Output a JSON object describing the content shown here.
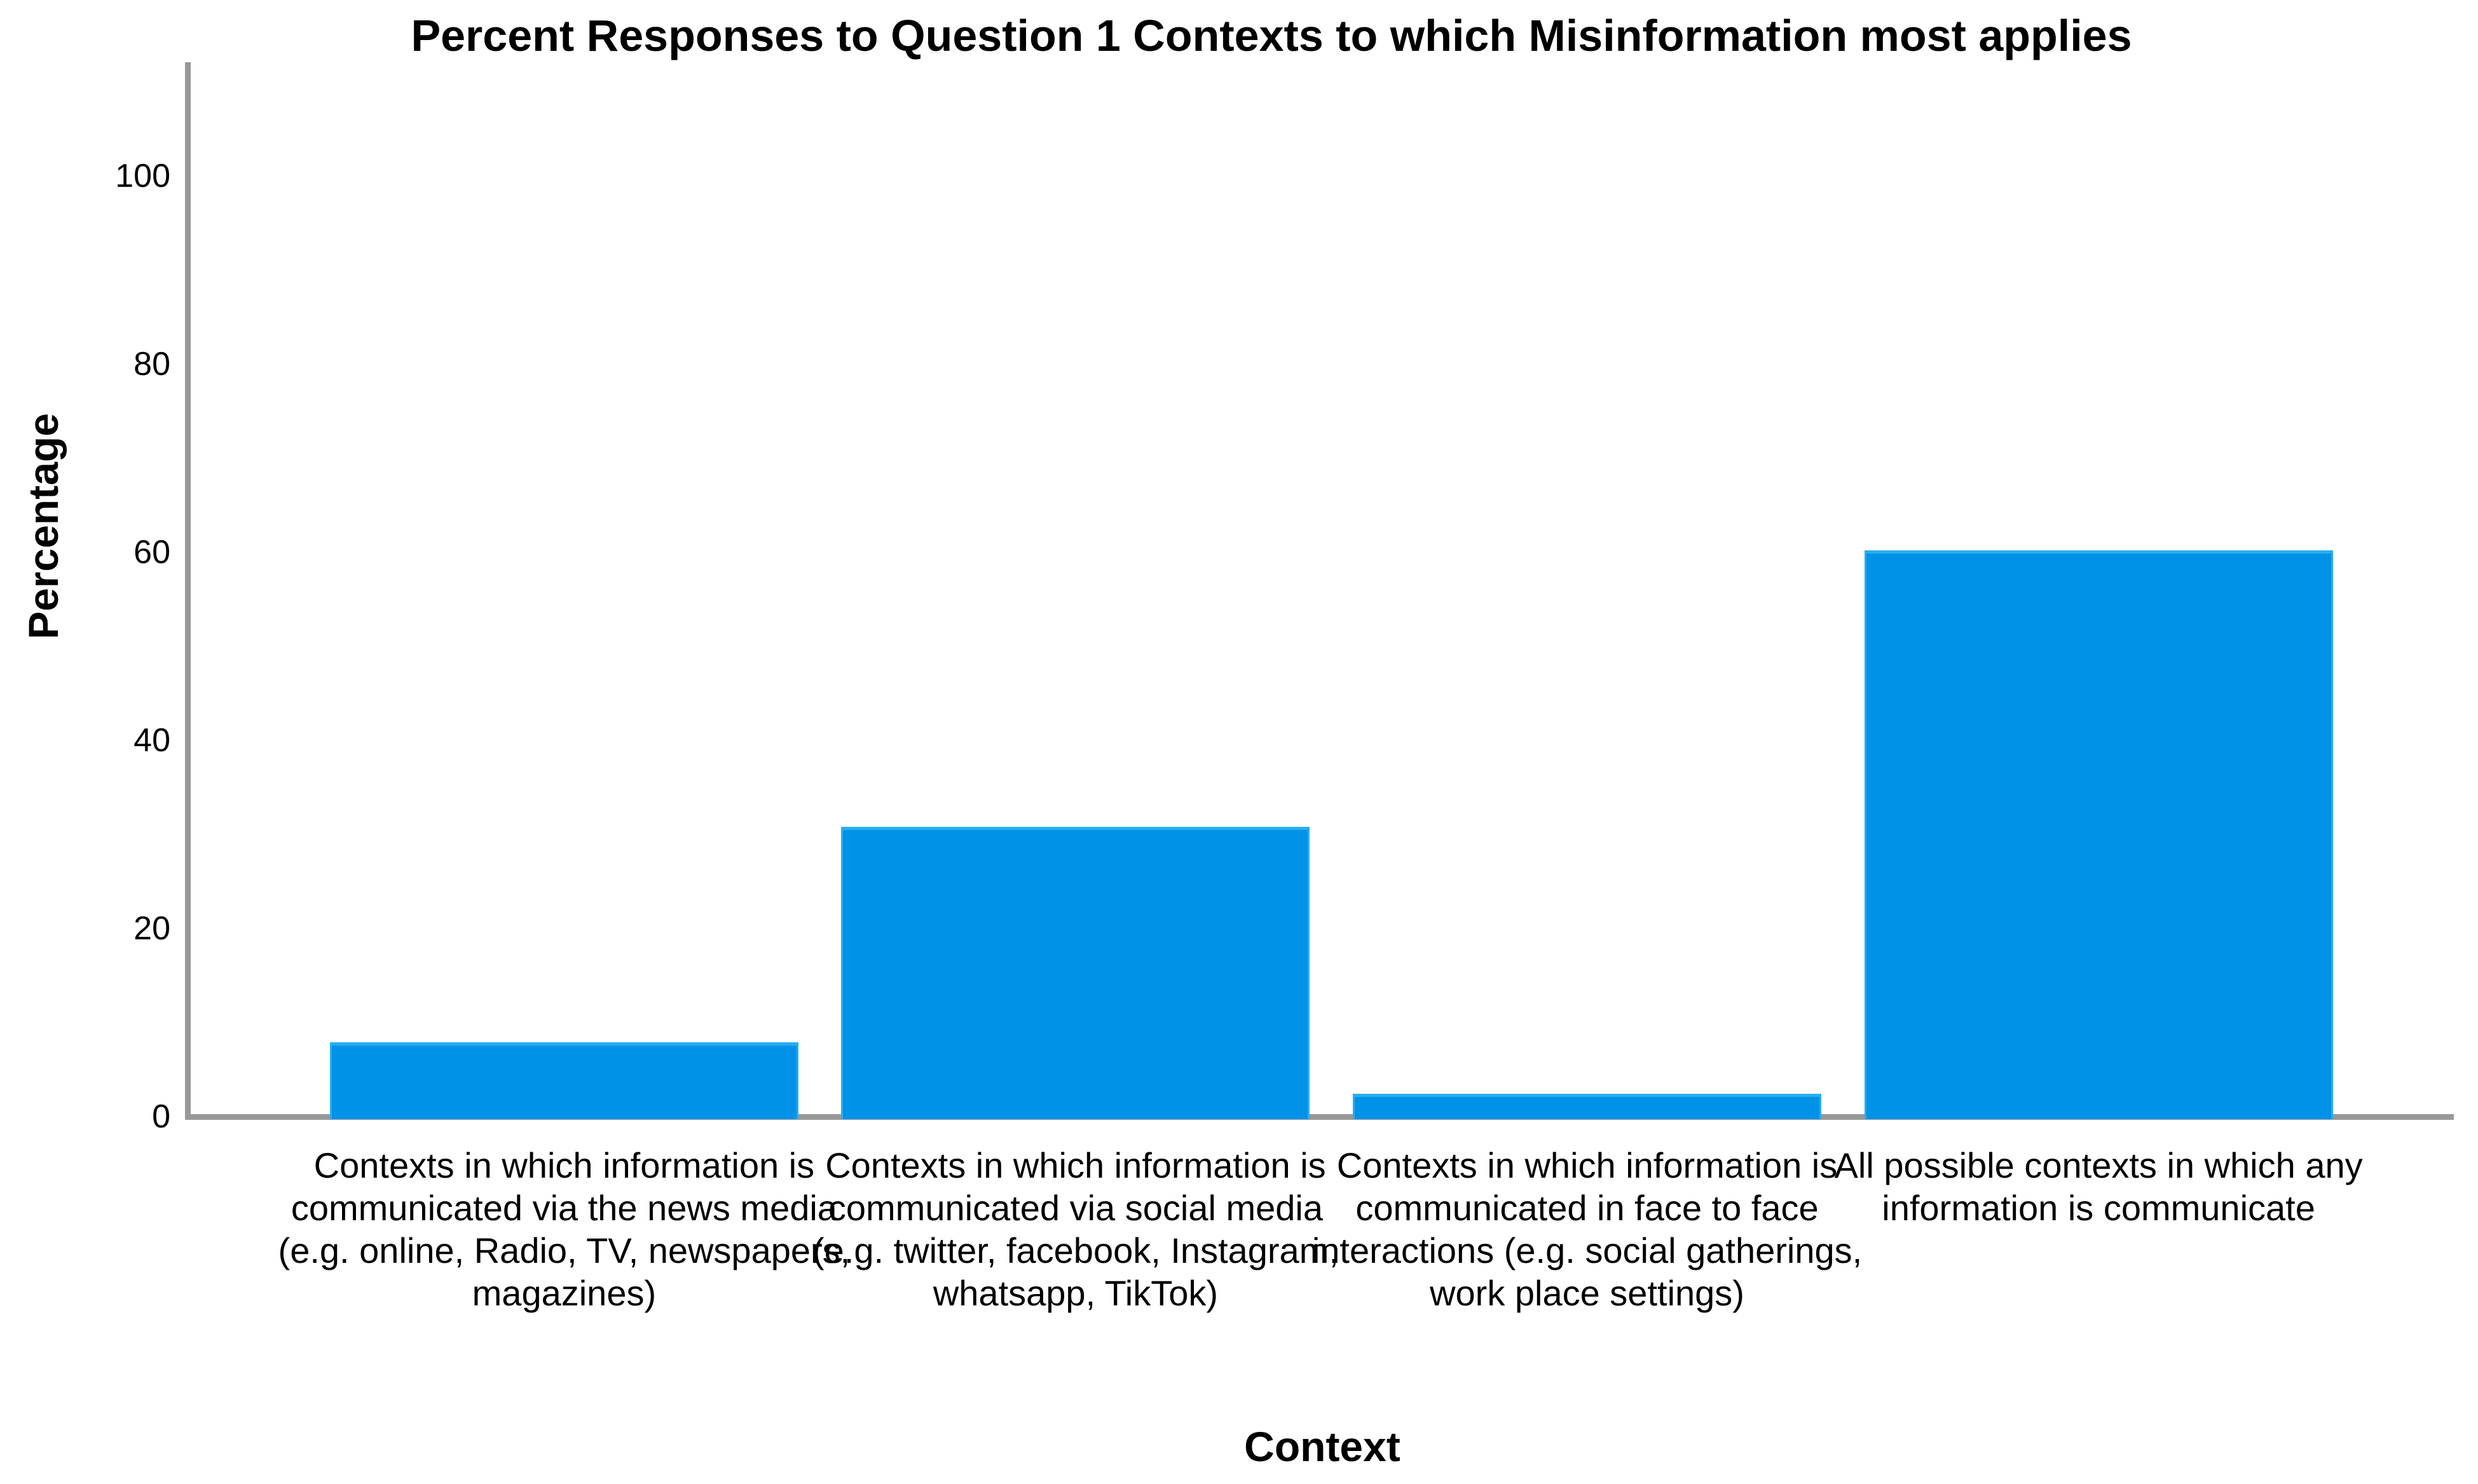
{
  "chart_data": {
    "type": "bar",
    "title": "Percent Responses to Question 1 Contexts to which Misinformation most applies",
    "xlabel": "Context",
    "ylabel": "Percentage",
    "categories": [
      "Contexts in which information is communicated via the news media (e.g. online, Radio, TV, newspapers, magazines)",
      "Contexts in which information is communicated via social media (e.g. twitter, facebook, Instagram, whatsapp, TikTok)",
      "Contexts in which information is communicated in face to face interactions (e.g. social gatherings, work place settings)",
      "All possible contexts in which any information is communicate"
    ],
    "values": [
      7.9,
      30.8,
      2.4,
      60.2
    ],
    "yticks": [
      0,
      20,
      40,
      60,
      80,
      100
    ],
    "ylim": [
      0,
      112
    ],
    "grid": "off",
    "legend": "none",
    "bar_color": "#0092e8",
    "bar_edge_color": "#27aeef",
    "axis_color": "#989898",
    "text_color": "#000000",
    "background_color": "#ffffff"
  }
}
